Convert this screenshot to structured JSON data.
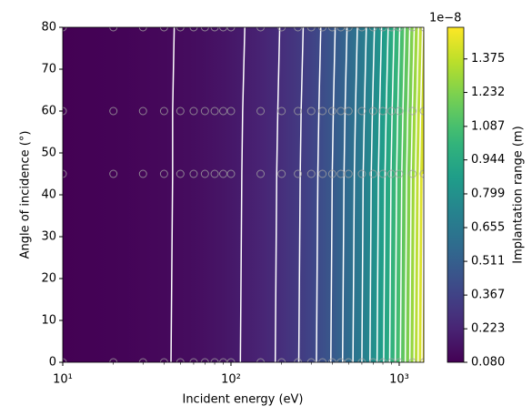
{
  "chart_data": {
    "type": "contour",
    "xlabel": "Incident energy (eV)",
    "ylabel": "Angle of incidence (°)",
    "xscale": "log",
    "x": [
      10,
      20,
      30,
      40,
      50,
      60,
      70,
      80,
      90,
      100,
      150,
      200,
      250,
      300,
      350,
      400,
      450,
      500,
      600,
      700,
      800,
      900,
      1000,
      1200,
      1400
    ],
    "y": [
      0,
      45,
      60,
      80
    ],
    "z": [
      [
        0.08,
        0.09,
        0.101,
        0.111,
        0.121,
        0.131,
        0.142,
        0.152,
        0.162,
        0.173,
        0.224,
        0.275,
        0.327,
        0.378,
        0.43,
        0.481,
        0.533,
        0.584,
        0.687,
        0.79,
        0.893,
        0.996,
        1.099,
        1.304,
        1.51
      ],
      [
        0.08,
        0.09,
        0.101,
        0.11,
        0.12,
        0.13,
        0.141,
        0.151,
        0.16,
        0.171,
        0.221,
        0.271,
        0.322,
        0.372,
        0.423,
        0.473,
        0.524,
        0.574,
        0.676,
        0.777,
        0.878,
        0.979,
        1.08,
        1.281,
        1.483
      ],
      [
        0.08,
        0.09,
        0.1,
        0.11,
        0.12,
        0.129,
        0.14,
        0.15,
        0.159,
        0.17,
        0.219,
        0.268,
        0.319,
        0.368,
        0.418,
        0.467,
        0.518,
        0.567,
        0.666,
        0.766,
        0.865,
        0.965,
        1.064,
        1.262,
        1.461
      ],
      [
        0.08,
        0.089,
        0.1,
        0.109,
        0.119,
        0.128,
        0.138,
        0.148,
        0.157,
        0.167,
        0.215,
        0.263,
        0.312,
        0.36,
        0.409,
        0.457,
        0.506,
        0.554,
        0.651,
        0.747,
        0.844,
        0.941,
        1.038,
        1.231,
        1.424
      ]
    ],
    "xlim": [
      10,
      1400
    ],
    "ylim": [
      0,
      80
    ],
    "xticks": [
      {
        "value": 10,
        "label": "10¹"
      },
      {
        "value": 100,
        "label": "10²"
      },
      {
        "value": 1000,
        "label": "10³"
      }
    ],
    "xminorticks": [
      20,
      30,
      40,
      50,
      60,
      70,
      80,
      90,
      200,
      300,
      400,
      500,
      600,
      700,
      800,
      900
    ],
    "yticks": [
      0,
      10,
      20,
      30,
      40,
      50,
      60,
      70,
      80
    ],
    "colormap": "viridis",
    "clim": [
      0.08,
      1.51
    ],
    "colorbar_ticks": [
      {
        "value": 0.08,
        "label": "0.080"
      },
      0.223,
      0.367,
      0.511,
      0.655,
      0.799,
      0.944,
      1.087,
      1.232,
      1.375
    ],
    "colorbar_label": "Implantation range (m)",
    "colorbar_offset": "1e−8",
    "contour_levels": [
      0.115,
      0.187,
      0.258,
      0.33,
      0.401,
      0.473,
      0.544,
      0.616,
      0.687,
      0.759,
      0.83,
      0.902,
      0.973,
      1.045,
      1.116,
      1.188,
      1.259,
      1.331,
      1.402,
      1.474
    ],
    "contour_color": "#ffffff",
    "marker_color": "#a0a0a0"
  }
}
